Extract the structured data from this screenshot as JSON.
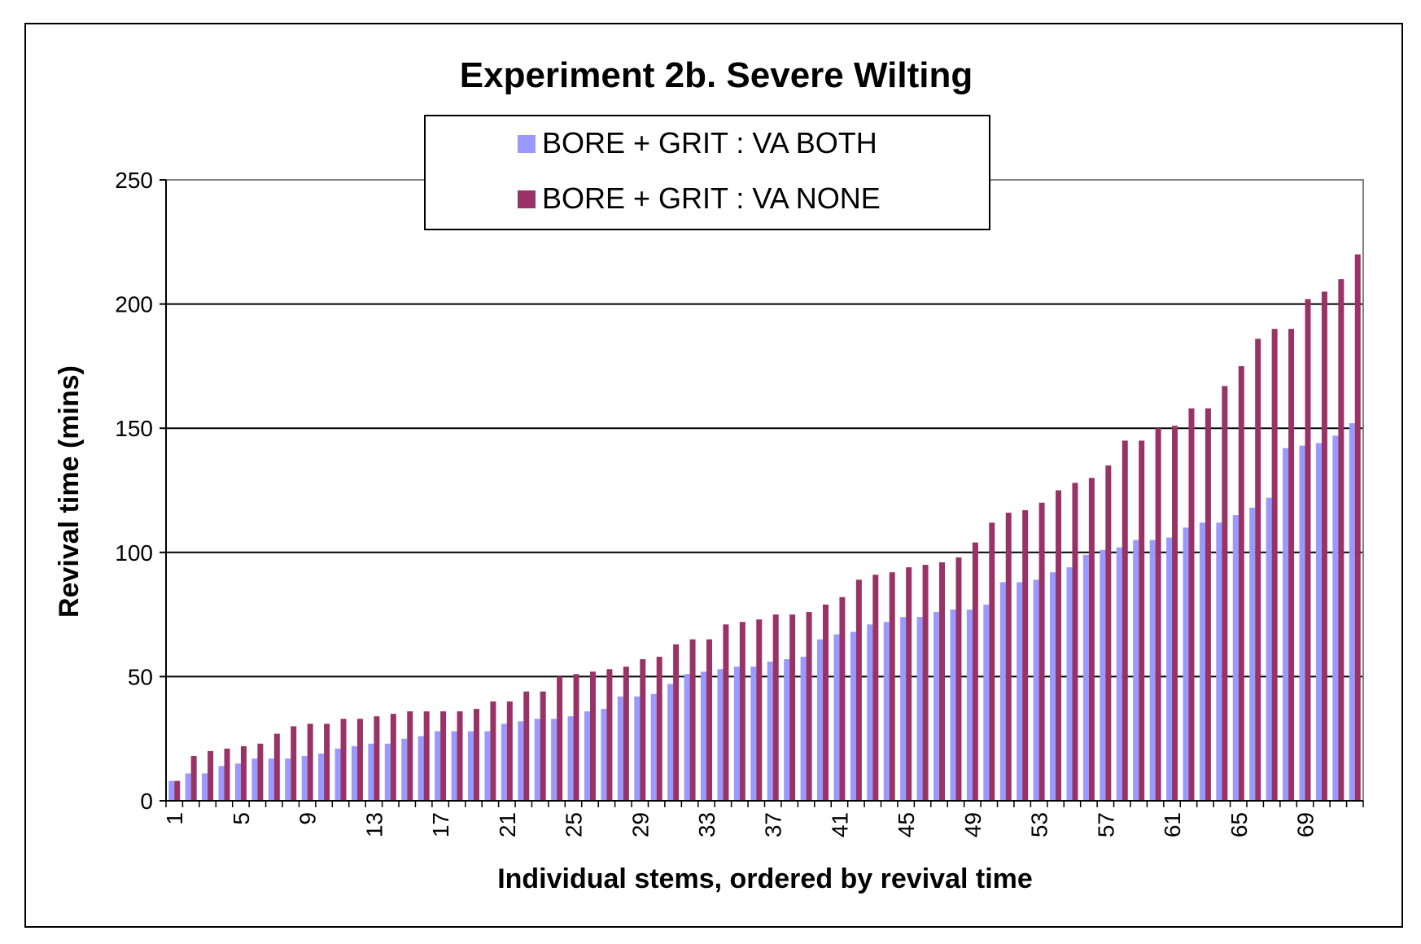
{
  "chart_data": {
    "type": "bar",
    "title": "Experiment 2b. Severe Wilting",
    "xlabel": "Individual stems, ordered by revival time",
    "ylabel": "Revival time (mins)",
    "ylim": [
      0,
      250
    ],
    "yticks": [
      0,
      50,
      100,
      150,
      200,
      250
    ],
    "x_tick_labels": [
      "1",
      "5",
      "9",
      "13",
      "17",
      "21",
      "25",
      "29",
      "33",
      "37",
      "41",
      "45",
      "49",
      "53",
      "57",
      "61",
      "65",
      "69"
    ],
    "x_tick_values": [
      1,
      5,
      9,
      13,
      17,
      21,
      25,
      29,
      33,
      37,
      41,
      45,
      49,
      53,
      57,
      61,
      65,
      69
    ],
    "grid": true,
    "legend_position": "top-center",
    "categories": [
      1,
      2,
      3,
      4,
      5,
      6,
      7,
      8,
      9,
      10,
      11,
      12,
      13,
      14,
      15,
      16,
      17,
      18,
      19,
      20,
      21,
      22,
      23,
      24,
      25,
      26,
      27,
      28,
      29,
      30,
      31,
      32,
      33,
      34,
      35,
      36,
      37,
      38,
      39,
      40,
      41,
      42,
      43,
      44,
      45,
      46,
      47,
      48,
      49,
      50,
      51,
      52,
      53,
      54,
      55,
      56,
      57,
      58,
      59,
      60,
      61,
      62,
      63,
      64,
      65,
      66,
      67,
      68,
      69,
      70,
      71,
      72
    ],
    "series": [
      {
        "name": "BORE + GRIT : VA BOTH",
        "color": "#9999ff",
        "values": [
          8,
          11,
          11,
          14,
          15,
          17,
          17,
          17,
          18,
          19,
          21,
          22,
          23,
          23,
          25,
          26,
          28,
          28,
          28,
          28,
          31,
          32,
          33,
          33,
          34,
          36,
          37,
          42,
          42,
          43,
          47,
          51,
          52,
          53,
          54,
          54,
          56,
          57,
          58,
          65,
          67,
          68,
          71,
          72,
          74,
          74,
          76,
          77,
          77,
          79,
          88,
          88,
          89,
          92,
          94,
          99,
          101,
          102,
          105,
          105,
          106,
          110,
          112,
          112,
          115,
          118,
          122,
          142,
          143,
          144,
          147,
          152
        ]
      },
      {
        "name": "BORE + GRIT : VA NONE",
        "color": "#993366",
        "values": [
          8,
          18,
          20,
          21,
          22,
          23,
          27,
          30,
          31,
          31,
          33,
          33,
          34,
          35,
          36,
          36,
          36,
          36,
          37,
          40,
          40,
          44,
          44,
          50,
          51,
          52,
          53,
          54,
          57,
          58,
          63,
          65,
          65,
          71,
          72,
          73,
          75,
          75,
          76,
          79,
          82,
          89,
          91,
          92,
          94,
          95,
          96,
          98,
          104,
          112,
          116,
          117,
          120,
          125,
          128,
          130,
          135,
          145,
          145,
          150,
          151,
          158,
          158,
          167,
          175,
          186,
          190,
          190,
          202,
          205,
          210,
          220
        ]
      }
    ]
  }
}
